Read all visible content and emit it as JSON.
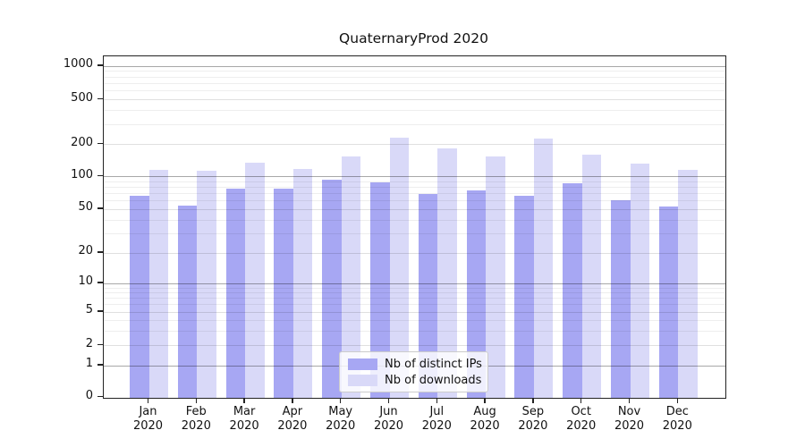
{
  "title": "QuaternaryProd 2020",
  "chart_data": {
    "type": "bar",
    "title": "QuaternaryProd 2020",
    "categories": [
      "Jan 2020",
      "Feb 2020",
      "Mar 2020",
      "Apr 2020",
      "May 2020",
      "Jun 2020",
      "Jul 2020",
      "Aug 2020",
      "Sep 2020",
      "Oct 2020",
      "Nov 2020",
      "Dec 2020"
    ],
    "x_tick_month": [
      "Jan",
      "Feb",
      "Mar",
      "Apr",
      "May",
      "Jun",
      "Jul",
      "Aug",
      "Sep",
      "Oct",
      "Nov",
      "Dec"
    ],
    "x_tick_year": "2020",
    "series": [
      {
        "name": "Nb of distinct IPs",
        "color": "#a7a7f3",
        "values": [
          66,
          54,
          77,
          77,
          93,
          89,
          69,
          74,
          66,
          87,
          60,
          53
        ]
      },
      {
        "name": "Nb of downloads",
        "color": "#d9d9f8",
        "values": [
          116,
          114,
          136,
          119,
          155,
          230,
          182,
          155,
          224,
          161,
          133,
          116
        ]
      }
    ],
    "yscale": "symlog",
    "y_ticks": [
      0,
      1,
      2,
      5,
      10,
      20,
      50,
      100,
      200,
      500,
      1000
    ],
    "y_minor_ticks": [
      3,
      4,
      6,
      7,
      8,
      9,
      30,
      40,
      60,
      70,
      80,
      90,
      300,
      400,
      600,
      700,
      800,
      900
    ],
    "y_decade_ticks": [
      1,
      10,
      100,
      1000
    ],
    "ylim": [
      0,
      1200
    ],
    "grid": true,
    "legend_position": "lower center"
  }
}
